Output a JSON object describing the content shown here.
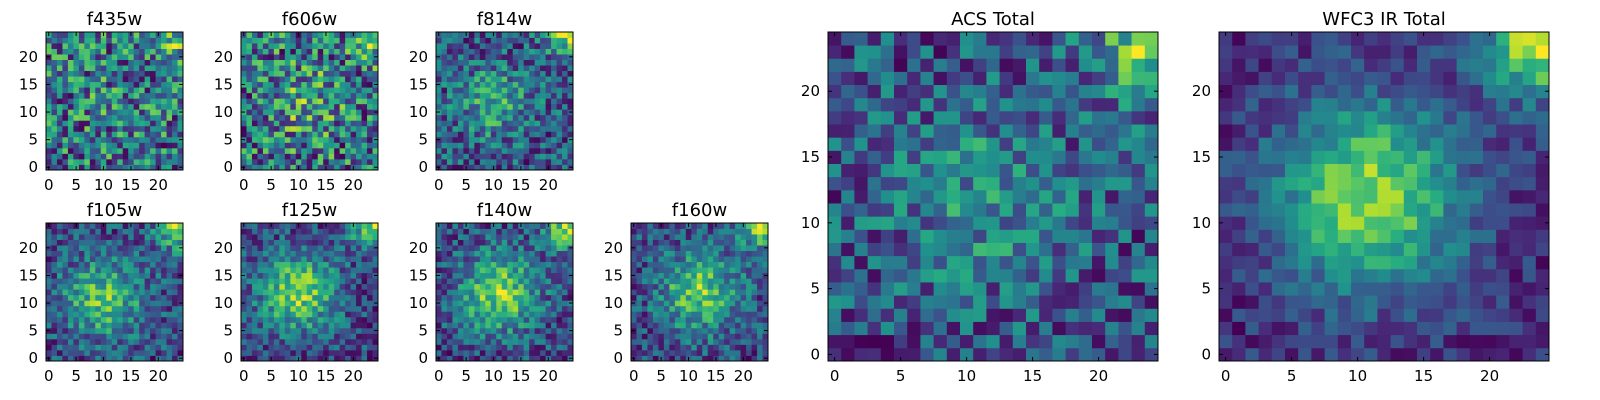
{
  "chart_data": [
    {
      "type": "heatmap",
      "title": "f435w",
      "xticks": [
        "0",
        "5",
        "10",
        "15",
        "20"
      ],
      "yticks": [
        "0",
        "5",
        "10",
        "15",
        "20"
      ],
      "grid": false,
      "colormap": "viridis",
      "pattern": {
        "center": [
          11,
          13
        ],
        "sigma": 5,
        "strength": 0.05,
        "noise": 0.65,
        "corner_strength": 0.25,
        "seed": 11
      }
    },
    {
      "type": "heatmap",
      "title": "f606w",
      "xticks": [
        "0",
        "5",
        "10",
        "15",
        "20"
      ],
      "yticks": [
        "0",
        "5",
        "10",
        "15",
        "20"
      ],
      "grid": false,
      "colormap": "viridis",
      "pattern": {
        "center": [
          11,
          12
        ],
        "sigma": 4.5,
        "strength": 0.15,
        "noise": 0.6,
        "corner_strength": 0.3,
        "seed": 23
      }
    },
    {
      "type": "heatmap",
      "title": "f814w",
      "xticks": [
        "0",
        "5",
        "10",
        "15",
        "20"
      ],
      "yticks": [
        "0",
        "5",
        "10",
        "15",
        "20"
      ],
      "grid": false,
      "colormap": "viridis",
      "pattern": {
        "center": [
          10,
          12
        ],
        "sigma": 4.5,
        "strength": 0.3,
        "noise": 0.55,
        "corner_strength": 0.5,
        "seed": 37
      }
    },
    {
      "type": "heatmap",
      "title": "f105w",
      "xticks": [
        "0",
        "5",
        "10",
        "15",
        "20"
      ],
      "yticks": [
        "0",
        "5",
        "10",
        "15",
        "20"
      ],
      "grid": false,
      "colormap": "viridis",
      "pattern": {
        "center": [
          10,
          11
        ],
        "sigma": 5,
        "strength": 0.45,
        "noise": 0.45,
        "corner_strength": 0.55,
        "seed": 41
      }
    },
    {
      "type": "heatmap",
      "title": "f125w",
      "xticks": [
        "0",
        "5",
        "10",
        "15",
        "20"
      ],
      "yticks": [
        "0",
        "5",
        "10",
        "15",
        "20"
      ],
      "grid": false,
      "colormap": "viridis",
      "pattern": {
        "center": [
          10,
          12
        ],
        "sigma": 5,
        "strength": 0.5,
        "noise": 0.4,
        "corner_strength": 0.55,
        "seed": 53
      }
    },
    {
      "type": "heatmap",
      "title": "f140w",
      "xticks": [
        "0",
        "5",
        "10",
        "15",
        "20"
      ],
      "yticks": [
        "0",
        "5",
        "10",
        "15",
        "20"
      ],
      "grid": false,
      "colormap": "viridis",
      "pattern": {
        "center": [
          11,
          12
        ],
        "sigma": 5,
        "strength": 0.5,
        "noise": 0.42,
        "corner_strength": 0.6,
        "seed": 67
      }
    },
    {
      "type": "heatmap",
      "title": "f160w",
      "xticks": [
        "0",
        "5",
        "10",
        "15",
        "20"
      ],
      "yticks": [
        "0",
        "5",
        "10",
        "15",
        "20"
      ],
      "grid": false,
      "colormap": "viridis",
      "pattern": {
        "center": [
          12,
          12
        ],
        "sigma": 5,
        "strength": 0.45,
        "noise": 0.42,
        "corner_strength": 0.55,
        "seed": 79
      }
    },
    {
      "type": "heatmap",
      "title": "ACS Total",
      "xticks": [
        "0",
        "5",
        "10",
        "15",
        "20"
      ],
      "yticks": [
        "0",
        "5",
        "10",
        "15",
        "20"
      ],
      "grid": false,
      "colormap": "viridis",
      "pattern": {
        "center": [
          11,
          12
        ],
        "sigma": 5,
        "strength": 0.2,
        "noise": 0.5,
        "corner_strength": 0.5,
        "seed": 97
      }
    },
    {
      "type": "heatmap",
      "title": "WFC3 IR Total",
      "xticks": [
        "0",
        "5",
        "10",
        "15",
        "20"
      ],
      "yticks": [
        "0",
        "5",
        "10",
        "15",
        "20"
      ],
      "grid": false,
      "colormap": "viridis",
      "pattern": {
        "center": [
          11,
          12
        ],
        "sigma": 5,
        "strength": 0.6,
        "noise": 0.25,
        "corner_strength": 0.7,
        "seed": 101
      }
    }
  ]
}
